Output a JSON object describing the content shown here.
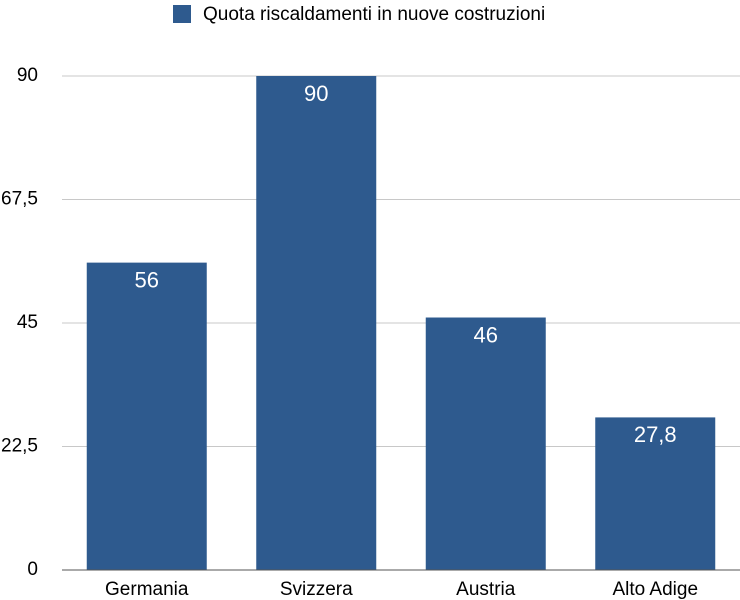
{
  "chart_data": {
    "type": "bar",
    "categories": [
      "Germania",
      "Svizzera",
      "Austria",
      "Alto Adige"
    ],
    "series": [
      {
        "name": "Quota riscaldamenti in nuove costruzioni",
        "color": "#2e5a8e",
        "values": [
          56,
          90,
          46,
          27.8
        ],
        "value_labels": [
          "56",
          "90",
          "46",
          "27,8"
        ]
      }
    ],
    "ylim": [
      0,
      90
    ],
    "yticks": [
      0,
      {
        "value": 22.5,
        "label": "22,5"
      },
      45,
      {
        "value": 67.5,
        "label": "67,5"
      },
      90
    ],
    "grid": true,
    "legend": "top"
  }
}
